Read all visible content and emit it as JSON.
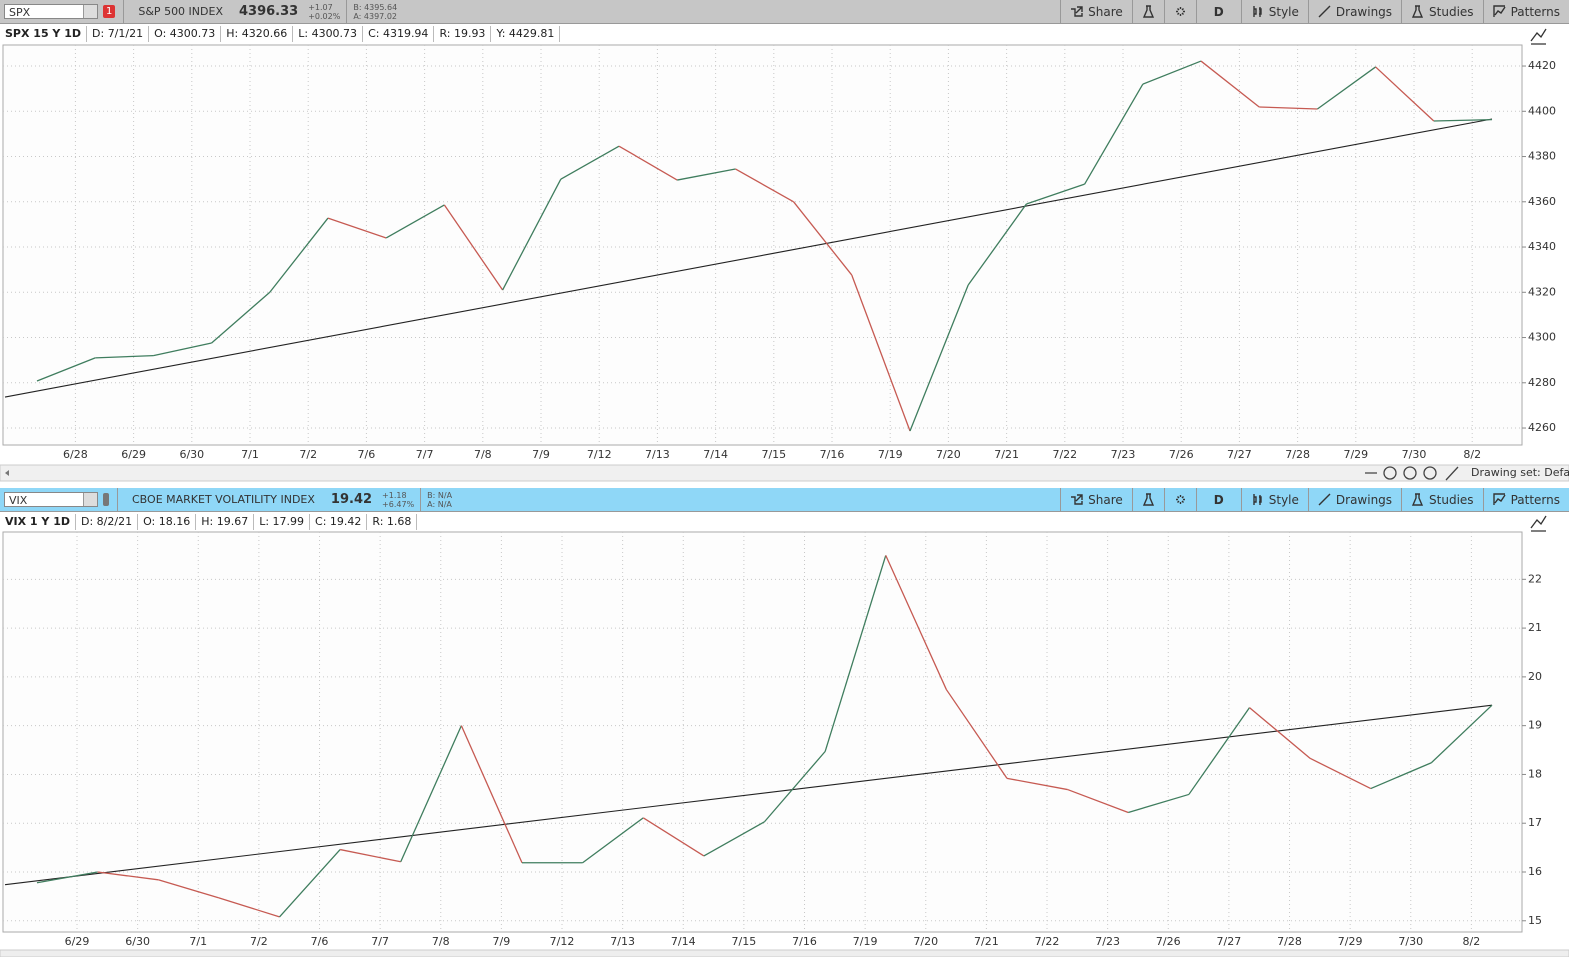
{
  "panels": [
    {
      "symbol": "SPX",
      "alert": "1",
      "description": "S&P 500 INDEX",
      "last": "4396.33",
      "change": "+1.07",
      "change_pct": "+0.02%",
      "bid": "B: 4395.64",
      "ask": "A: 4397.02",
      "buttons": [
        "Share",
        "D",
        "Style",
        "Drawings",
        "Studies",
        "Patterns"
      ],
      "info": [
        "SPX 15 Y 1D",
        "D: 7/1/21",
        "O: 4300.73",
        "H: 4320.66",
        "L: 4300.73",
        "C: 4319.94",
        "R: 19.93",
        "Y: 4429.81"
      ],
      "drawing_set": "Drawing set: Defau"
    },
    {
      "symbol": "VIX",
      "description": "CBOE MARKET VOLATILITY INDEX",
      "last": "19.42",
      "change": "+1.18",
      "change_pct": "+6.47%",
      "bid": "B: N/A",
      "ask": "A: N/A",
      "buttons": [
        "Share",
        "D",
        "Style",
        "Drawings",
        "Studies",
        "Patterns"
      ],
      "info": [
        "VIX 1 Y 1D",
        "D: 8/2/21",
        "O: 18.16",
        "H: 19.67",
        "L: 17.99",
        "C: 19.42",
        "R: 1.68"
      ]
    }
  ],
  "chart_data": [
    {
      "type": "line",
      "categories": [
        null,
        "6/28",
        "6/29",
        "6/30",
        "7/1",
        "7/2",
        "7/6",
        "7/7",
        "7/8",
        "7/9",
        "7/12",
        "7/13",
        "7/14",
        "7/15",
        "7/16",
        "7/19",
        "7/20",
        "7/21",
        "7/22",
        "7/23",
        "7/26",
        "7/27",
        "7/28",
        "7/29",
        "7/30",
        "8/2"
      ],
      "values": [
        4280.8,
        4291,
        4292,
        4297.6,
        4320,
        4352.8,
        4344,
        4358.6,
        4321,
        4370,
        4384.6,
        4369.6,
        4374.5,
        4360,
        4327.6,
        4258.7,
        4323.2,
        4359,
        4367.8,
        4412,
        4422.2,
        4401.9,
        4401,
        4419.6,
        4395.7,
        4396.33
      ],
      "up_color": "#3f7d5e",
      "down_color": "#c65a52",
      "trendline": {
        "start": 4273.7,
        "end": 4396.6,
        "color": "#222222"
      },
      "ylim": [
        4252.5,
        4429.3
      ],
      "yticks": [
        4260,
        4280,
        4300,
        4320,
        4340,
        4360,
        4380,
        4400,
        4420
      ],
      "grid": true
    },
    {
      "type": "line",
      "categories": [
        null,
        "6/29",
        "6/30",
        "7/1",
        "7/2",
        "7/6",
        "7/7",
        "7/8",
        "7/9",
        "7/12",
        "7/13",
        "7/14",
        "7/15",
        "7/16",
        "7/19",
        "7/20",
        "7/21",
        "7/22",
        "7/23",
        "7/26",
        "7/27",
        "7/28",
        "7/29",
        "7/30",
        "8/2"
      ],
      "values": [
        15.78,
        16.0,
        15.84,
        15.47,
        15.08,
        16.46,
        16.21,
        19.0,
        16.19,
        16.19,
        17.11,
        16.33,
        17.03,
        18.47,
        22.49,
        19.74,
        17.92,
        17.69,
        17.22,
        17.59,
        19.37,
        18.33,
        17.71,
        18.24,
        19.42
      ],
      "up_color": "#3f7d5e",
      "down_color": "#c65a52",
      "trendline": {
        "start": 15.74,
        "end": 19.42,
        "color": "#222222"
      },
      "ylim": [
        14.77,
        22.97
      ],
      "yticks": [
        15,
        16,
        17,
        18,
        19,
        20,
        21,
        22
      ],
      "grid": true
    }
  ]
}
